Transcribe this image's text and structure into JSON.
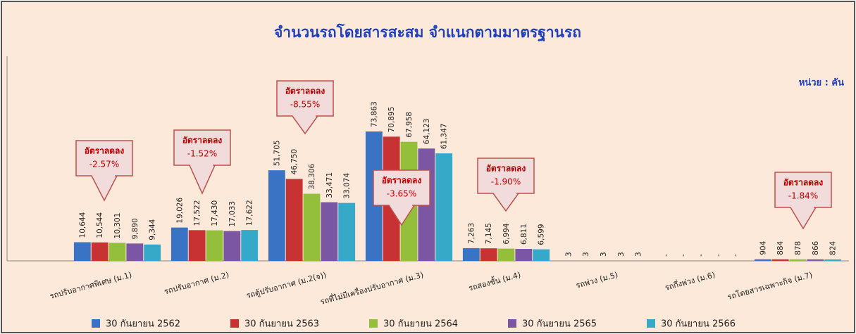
{
  "chart_data": {
    "type": "bar",
    "title": "จำนวนรถโดยสารสะสม  จำแนกตามมาตรฐานรถ",
    "subtitle": "หน่วย : คัน",
    "categories": [
      "รถปรับอากาศพิเศษ (ม.1)",
      "รถปรับอากาศ (ม.2)",
      "รถตู้ปรับอากาศ (ม.2(จ))",
      "รถที่ไม่มีเครื่องปรับอากาศ (ม.3)",
      "รถสองชั้น (ม.4)",
      "รถพ่วง (ม.5)",
      "รถกึ่งพ่วง (ม.6)",
      "รถโดยสารเฉพาะกิจ (ม.7)"
    ],
    "series": [
      {
        "name": "30 กันยายน 2562",
        "color": "#3b73c4",
        "values": [
          10644,
          19026,
          51705,
          73863,
          7263,
          3,
          0,
          904
        ],
        "value_labels": [
          "10,644",
          "19,026",
          "51,705",
          "73,863",
          "7,263",
          "3",
          "-",
          "904"
        ]
      },
      {
        "name": "30 กันยายน 2563",
        "color": "#c83232",
        "values": [
          10544,
          17522,
          46750,
          70895,
          7145,
          3,
          0,
          884
        ],
        "value_labels": [
          "10,544",
          "17,522",
          "46,750",
          "70,895",
          "7,145",
          "3",
          "-",
          "884"
        ]
      },
      {
        "name": "30 กันยายน 2564",
        "color": "#93bf3a",
        "values": [
          10301,
          17430,
          38306,
          67958,
          6994,
          3,
          0,
          878
        ],
        "value_labels": [
          "10,301",
          "17,430",
          "38,306",
          "67,958",
          "6,994",
          "3",
          "-",
          "878"
        ]
      },
      {
        "name": "30 กันยายน 2565",
        "color": "#7b56a3",
        "values": [
          9890,
          17033,
          33471,
          64123,
          6811,
          3,
          0,
          866
        ],
        "value_labels": [
          "9,890",
          "17,033",
          "33,471",
          "64,123",
          "6,811",
          "3",
          "-",
          "866"
        ]
      },
      {
        "name": "30 กันยายน 2566",
        "color": "#36a9c9",
        "values": [
          9344,
          17622,
          33074,
          61347,
          6599,
          3,
          0,
          824
        ],
        "value_labels": [
          "9,344",
          "17,622",
          "33,074",
          "61,347",
          "6,599",
          "3",
          "-",
          "824"
        ]
      }
    ],
    "annotations": [
      {
        "title": "อัตราลดลง",
        "text": "-2.57%"
      },
      {
        "title": "อัตราลดลง",
        "text": "-1.52%"
      },
      {
        "title": "อัตราลดลง",
        "text": "-8.55%"
      },
      {
        "title": "อัตราลดลง",
        "text": "-3.65%"
      },
      {
        "title": "อัตราลดลง",
        "text": "-1.90%"
      },
      {
        "title": "อัตราลดลง",
        "text": "-1.84%"
      }
    ],
    "ylim": [
      0,
      120000
    ]
  }
}
